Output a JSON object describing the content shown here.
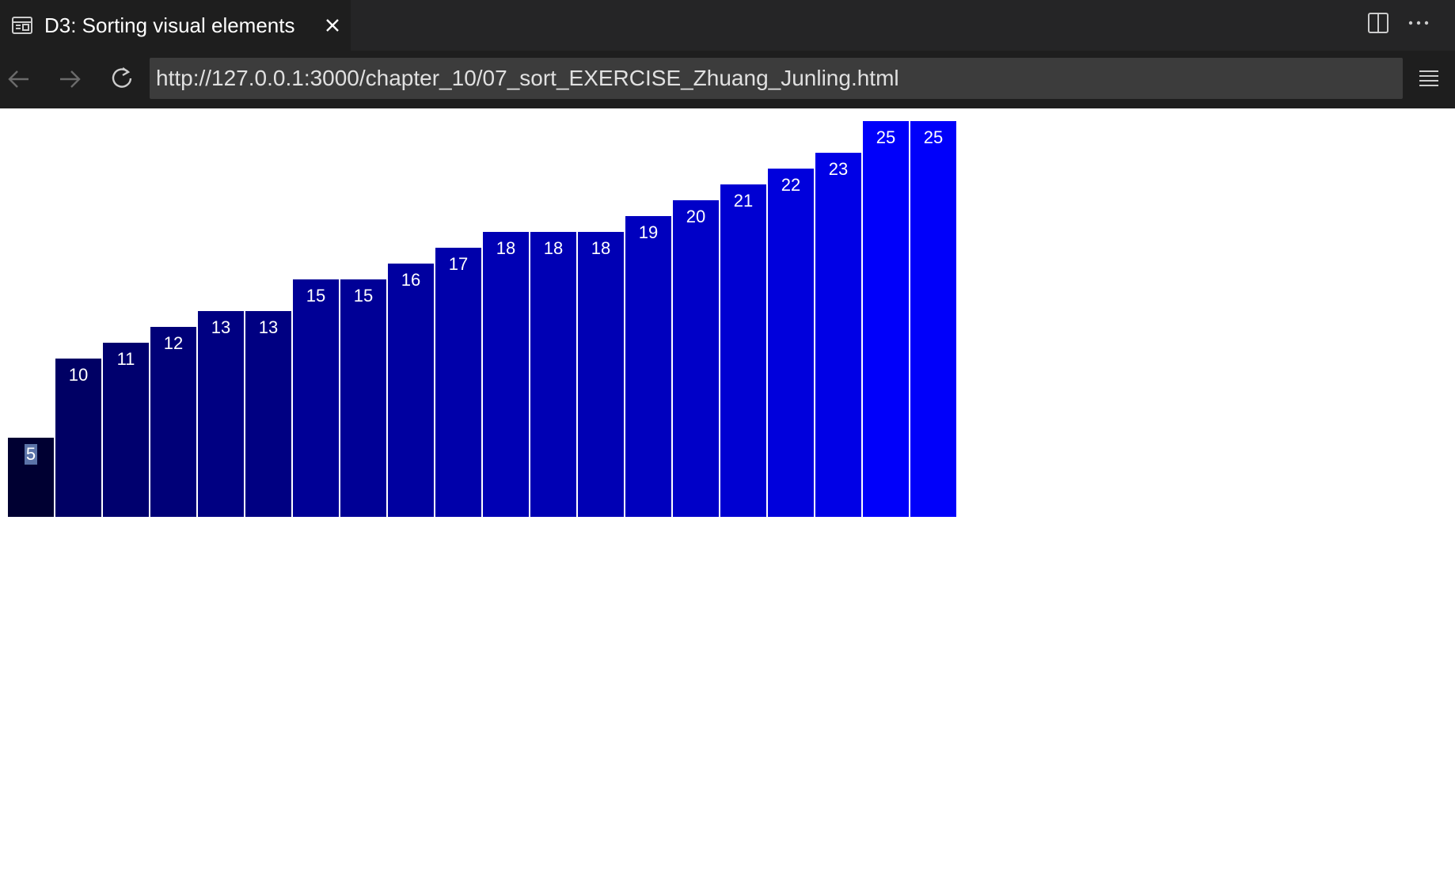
{
  "tab": {
    "title": "D3: Sorting visual elements",
    "icon": "preview-icon",
    "close_icon": "close-icon"
  },
  "toolbar_icons": [
    "split-editor-icon",
    "more-actions-icon"
  ],
  "nav": {
    "back_icon": "arrow-left-icon",
    "forward_icon": "arrow-right-icon",
    "reload_icon": "reload-icon",
    "url": "http://127.0.0.1:3000/chapter_10/07_sort_EXERCISE_Zhuang_Junling.html",
    "menu_icon": "menu-icon"
  },
  "chart_data": {
    "type": "bar",
    "values": [
      5,
      10,
      11,
      12,
      13,
      13,
      15,
      15,
      16,
      17,
      18,
      18,
      18,
      19,
      20,
      21,
      22,
      23,
      25,
      25
    ],
    "labels": [
      "5",
      "10",
      "11",
      "12",
      "13",
      "13",
      "15",
      "15",
      "16",
      "17",
      "18",
      "18",
      "18",
      "19",
      "20",
      "21",
      "22",
      "23",
      "25",
      "25"
    ],
    "color_rule": "rgb(0, 0, value * 10)",
    "highlighted_label_index": 0,
    "highlight_color": "#5b73a8"
  }
}
